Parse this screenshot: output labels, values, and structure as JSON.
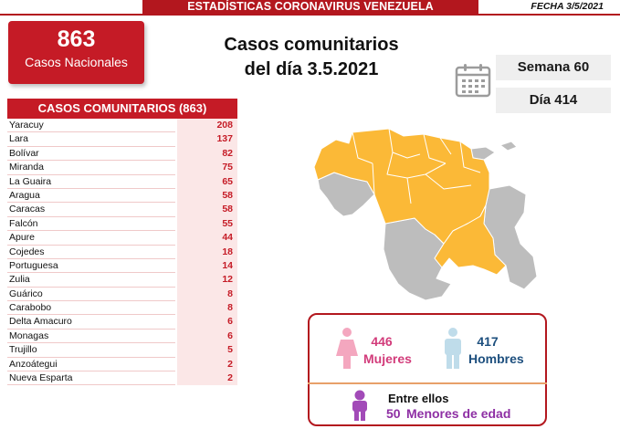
{
  "header": {
    "title": "ESTADÍSTICAS CORONAVIRUS VENEZUELA",
    "date": "FECHA 3/5/2021"
  },
  "national": {
    "count": "863",
    "label": "Casos Nacionales"
  },
  "headline": {
    "line1": "Casos comunitarios",
    "line2": "del día 3.5.2021"
  },
  "calendar_icon": "calendar-icon",
  "week": "Semana 60",
  "day": "Día 414",
  "table": {
    "title": "CASOS COMUNITARIOS (863)",
    "rows": [
      {
        "state": "Yaracuy",
        "cases": "208"
      },
      {
        "state": "Lara",
        "cases": "137"
      },
      {
        "state": "Bolívar",
        "cases": "82"
      },
      {
        "state": "Miranda",
        "cases": "75"
      },
      {
        "state": "La Guaira",
        "cases": "65"
      },
      {
        "state": "Aragua",
        "cases": "58"
      },
      {
        "state": "Caracas",
        "cases": "58"
      },
      {
        "state": "Falcón",
        "cases": "55"
      },
      {
        "state": "Apure",
        "cases": "44"
      },
      {
        "state": "Cojedes",
        "cases": "18"
      },
      {
        "state": "Portuguesa",
        "cases": "14"
      },
      {
        "state": "Zulia",
        "cases": "12"
      },
      {
        "state": "Guárico",
        "cases": "8"
      },
      {
        "state": "Carabobo",
        "cases": "8"
      },
      {
        "state": "Delta Amacuro",
        "cases": "6"
      },
      {
        "state": "Monagas",
        "cases": "6"
      },
      {
        "state": "Trujillo",
        "cases": "5"
      },
      {
        "state": "Anzoátegui",
        "cases": "2"
      },
      {
        "state": "Nueva Esparta",
        "cases": "2"
      }
    ]
  },
  "map_colors": {
    "affected": "#fbb937",
    "unaffected": "#bdbdbd"
  },
  "demographics": {
    "women_count": "446",
    "women_label": "Mujeres",
    "men_count": "417",
    "men_label": "Hombres",
    "minors_intro": "Entre ellos",
    "minors_count": "50",
    "minors_label": "Menores de edad",
    "icons": [
      "female-icon",
      "male-icon",
      "child-icon"
    ]
  },
  "colors": {
    "brand_red": "#c51b26",
    "women": "#d23b7a",
    "men": "#1d4f7e",
    "minors": "#8e2fa4"
  }
}
